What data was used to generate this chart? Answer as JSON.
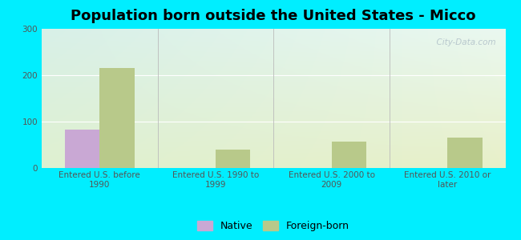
{
  "title": "Population born outside the United States - Micco",
  "categories": [
    "Entered U.S. before\n1990",
    "Entered U.S. 1990 to\n1999",
    "Entered U.S. 2000 to\n2009",
    "Entered U.S. 2010 or\nlater"
  ],
  "native_values": [
    82,
    0,
    0,
    0
  ],
  "foreign_values": [
    215,
    40,
    57,
    65
  ],
  "native_color": "#c9a8d4",
  "foreign_color": "#b8c98a",
  "outer_background": "#00eeff",
  "ylim": [
    0,
    300
  ],
  "yticks": [
    0,
    100,
    200,
    300
  ],
  "bar_width": 0.3,
  "title_fontsize": 13,
  "tick_fontsize": 7.5,
  "legend_fontsize": 9,
  "watermark": "  City-Data.com"
}
